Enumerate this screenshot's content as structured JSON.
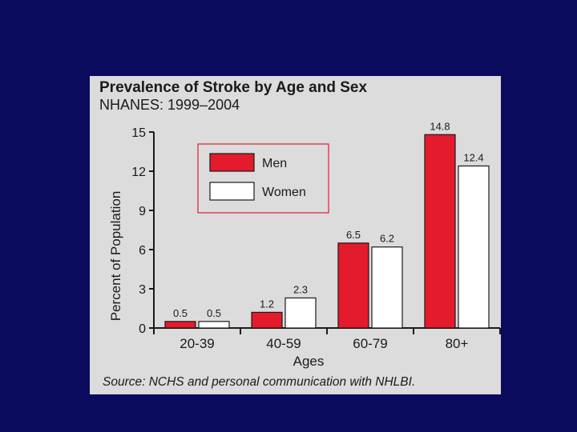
{
  "chart_data": {
    "type": "bar",
    "title": "Prevalence of Stroke by Age and Sex",
    "subtitle": "NHANES: 1999–2004",
    "xlabel": "Ages",
    "ylabel": "Percent of Population",
    "categories": [
      "20-39",
      "40-59",
      "60-79",
      "80+"
    ],
    "ylim": [
      0,
      15
    ],
    "yticks": [
      0,
      3,
      6,
      9,
      12,
      15
    ],
    "grid": false,
    "legend_position": "top-left",
    "series": [
      {
        "name": "Men",
        "color": "#e31b2d",
        "values": [
          0.5,
          1.2,
          6.5,
          14.8
        ],
        "labels": [
          "0.5",
          "1.2",
          "6.5",
          "14.8"
        ]
      },
      {
        "name": "Women",
        "color": "#ffffff",
        "values": [
          0.5,
          2.3,
          6.2,
          12.4
        ],
        "labels": [
          "0.5",
          "2.3",
          "6.2",
          "12.4"
        ]
      }
    ],
    "source": "Source: NCHS and personal communication with NHLBI."
  }
}
